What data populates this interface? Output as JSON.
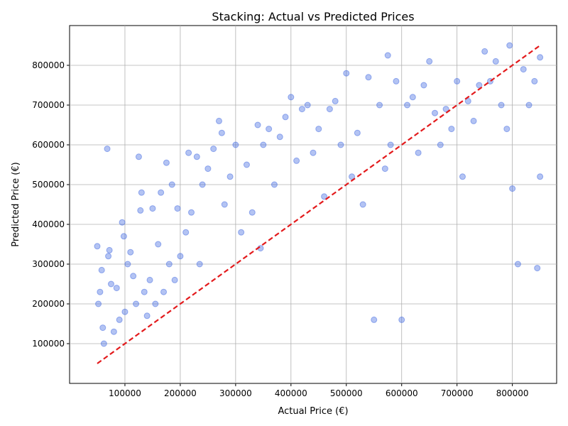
{
  "chart_data": {
    "type": "scatter",
    "title": "Stacking: Actual vs Predicted Prices",
    "xlabel": "Actual Price (€)",
    "ylabel": "Predicted Price (€)",
    "xlim": [
      0,
      880000
    ],
    "ylim": [
      0,
      900000
    ],
    "x_ticks": [
      100000,
      200000,
      300000,
      400000,
      500000,
      600000,
      700000,
      800000
    ],
    "x_tick_labels": [
      "100000",
      "200000",
      "300000",
      "400000",
      "500000",
      "600000",
      "700000",
      "800000"
    ],
    "y_ticks": [
      100000,
      200000,
      300000,
      400000,
      500000,
      600000,
      700000,
      800000
    ],
    "y_tick_labels": [
      "100000",
      "200000",
      "300000",
      "400000",
      "500000",
      "600000",
      "700000",
      "800000"
    ],
    "grid": true,
    "point_color": "#4169e1",
    "point_opacity": 0.4,
    "reference_line": {
      "style": "dashed",
      "color": "#e31a1c",
      "x": [
        50000,
        850000
      ],
      "y": [
        50000,
        850000
      ]
    },
    "series": [
      {
        "values": [
          [
            50000,
            345000
          ],
          [
            52000,
            200000
          ],
          [
            55000,
            230000
          ],
          [
            58000,
            285000
          ],
          [
            60000,
            140000
          ],
          [
            62000,
            100000
          ],
          [
            68000,
            590000
          ],
          [
            70000,
            320000
          ],
          [
            72000,
            335000
          ],
          [
            75000,
            250000
          ],
          [
            80000,
            130000
          ],
          [
            85000,
            240000
          ],
          [
            90000,
            160000
          ],
          [
            95000,
            405000
          ],
          [
            98000,
            370000
          ],
          [
            100000,
            180000
          ],
          [
            105000,
            300000
          ],
          [
            110000,
            330000
          ],
          [
            115000,
            270000
          ],
          [
            120000,
            200000
          ],
          [
            125000,
            570000
          ],
          [
            128000,
            435000
          ],
          [
            130000,
            480000
          ],
          [
            135000,
            230000
          ],
          [
            140000,
            170000
          ],
          [
            145000,
            260000
          ],
          [
            150000,
            440000
          ],
          [
            155000,
            200000
          ],
          [
            160000,
            350000
          ],
          [
            165000,
            480000
          ],
          [
            170000,
            230000
          ],
          [
            175000,
            555000
          ],
          [
            180000,
            300000
          ],
          [
            185000,
            500000
          ],
          [
            190000,
            260000
          ],
          [
            195000,
            440000
          ],
          [
            200000,
            320000
          ],
          [
            210000,
            380000
          ],
          [
            215000,
            580000
          ],
          [
            220000,
            430000
          ],
          [
            230000,
            570000
          ],
          [
            235000,
            300000
          ],
          [
            240000,
            500000
          ],
          [
            250000,
            540000
          ],
          [
            260000,
            590000
          ],
          [
            270000,
            660000
          ],
          [
            275000,
            630000
          ],
          [
            280000,
            450000
          ],
          [
            290000,
            520000
          ],
          [
            300000,
            600000
          ],
          [
            310000,
            380000
          ],
          [
            320000,
            550000
          ],
          [
            330000,
            430000
          ],
          [
            340000,
            650000
          ],
          [
            345000,
            340000
          ],
          [
            350000,
            600000
          ],
          [
            360000,
            640000
          ],
          [
            370000,
            500000
          ],
          [
            380000,
            620000
          ],
          [
            390000,
            670000
          ],
          [
            400000,
            720000
          ],
          [
            410000,
            560000
          ],
          [
            420000,
            690000
          ],
          [
            430000,
            700000
          ],
          [
            440000,
            580000
          ],
          [
            450000,
            640000
          ],
          [
            460000,
            470000
          ],
          [
            470000,
            690000
          ],
          [
            480000,
            710000
          ],
          [
            490000,
            600000
          ],
          [
            500000,
            780000
          ],
          [
            510000,
            520000
          ],
          [
            520000,
            630000
          ],
          [
            530000,
            450000
          ],
          [
            540000,
            770000
          ],
          [
            550000,
            160000
          ],
          [
            560000,
            700000
          ],
          [
            570000,
            540000
          ],
          [
            575000,
            825000
          ],
          [
            580000,
            600000
          ],
          [
            590000,
            760000
          ],
          [
            600000,
            160000
          ],
          [
            610000,
            700000
          ],
          [
            620000,
            720000
          ],
          [
            630000,
            580000
          ],
          [
            640000,
            750000
          ],
          [
            650000,
            810000
          ],
          [
            660000,
            680000
          ],
          [
            670000,
            600000
          ],
          [
            680000,
            690000
          ],
          [
            690000,
            640000
          ],
          [
            700000,
            760000
          ],
          [
            710000,
            520000
          ],
          [
            720000,
            710000
          ],
          [
            730000,
            660000
          ],
          [
            740000,
            750000
          ],
          [
            750000,
            835000
          ],
          [
            760000,
            760000
          ],
          [
            770000,
            810000
          ],
          [
            780000,
            700000
          ],
          [
            790000,
            640000
          ],
          [
            795000,
            850000
          ],
          [
            800000,
            490000
          ],
          [
            810000,
            300000
          ],
          [
            820000,
            790000
          ],
          [
            830000,
            700000
          ],
          [
            840000,
            760000
          ],
          [
            845000,
            290000
          ],
          [
            850000,
            820000
          ],
          [
            850000,
            520000
          ]
        ]
      }
    ]
  }
}
